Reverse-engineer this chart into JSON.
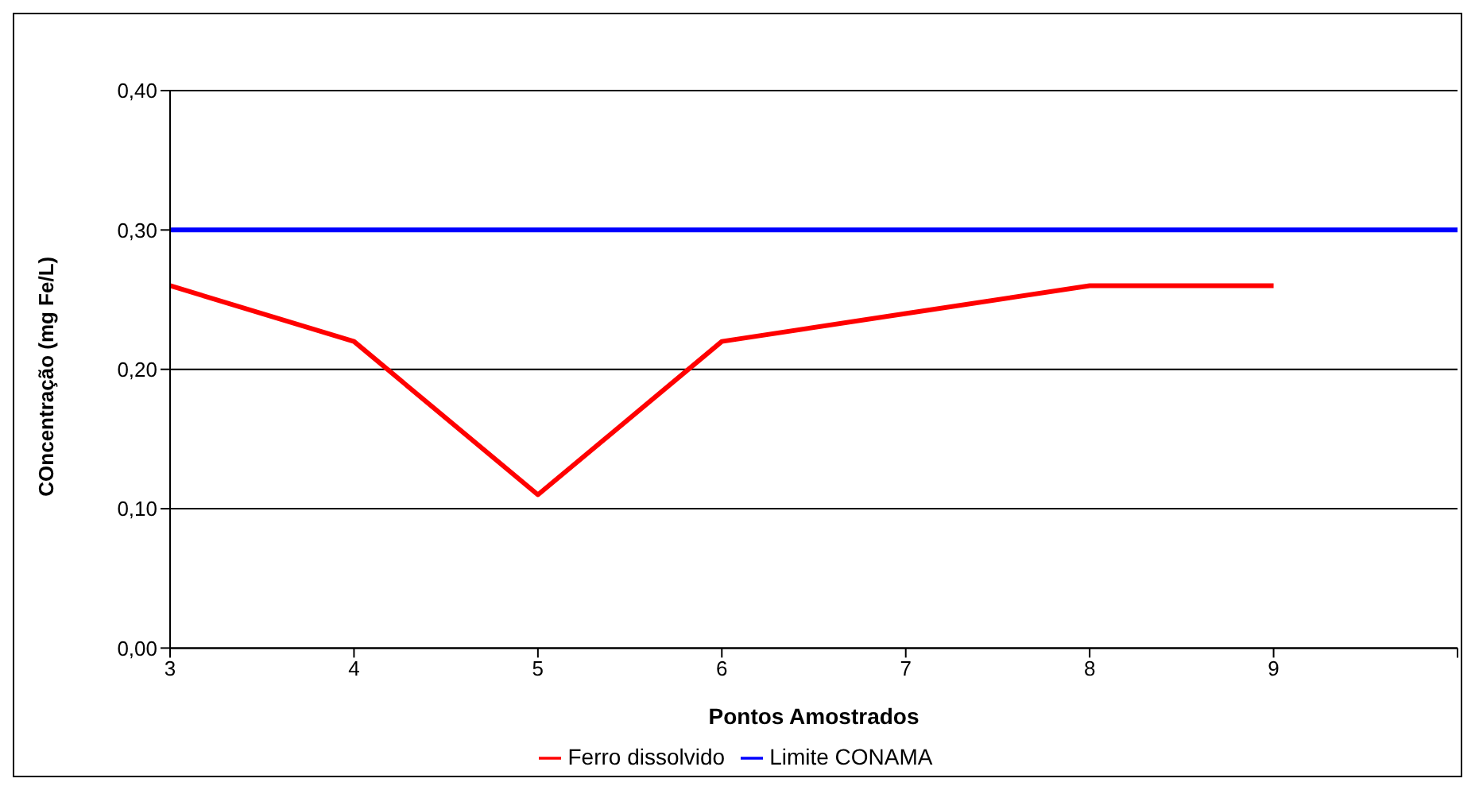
{
  "chart_data": {
    "type": "line",
    "xlabel": "Pontos Amostrados",
    "ylabel": "COncentração (mg Fe/L)",
    "categories": [
      "3",
      "4",
      "5",
      "6",
      "7",
      "8",
      "9",
      null
    ],
    "series": [
      {
        "name": "Ferro dissolvido",
        "color": "#ff0000",
        "values": [
          0.26,
          0.22,
          0.11,
          0.22,
          0.24,
          0.26,
          0.26,
          null
        ]
      },
      {
        "name": "Limite CONAMA",
        "color": "#0000ff",
        "values": [
          0.3,
          0.3,
          0.3,
          0.3,
          0.3,
          0.3,
          0.3,
          0.3
        ]
      }
    ],
    "ylim": [
      0,
      0.4
    ],
    "yticks": [
      {
        "value": 0,
        "label": "0,00"
      },
      {
        "value": 0.1,
        "label": "0,10"
      },
      {
        "value": 0.2,
        "label": "0,20"
      },
      {
        "value": 0.3,
        "label": "0,30"
      },
      {
        "value": 0.4,
        "label": "0,40"
      }
    ],
    "grid": "y",
    "legend": "bottom",
    "line_style": "solid"
  }
}
